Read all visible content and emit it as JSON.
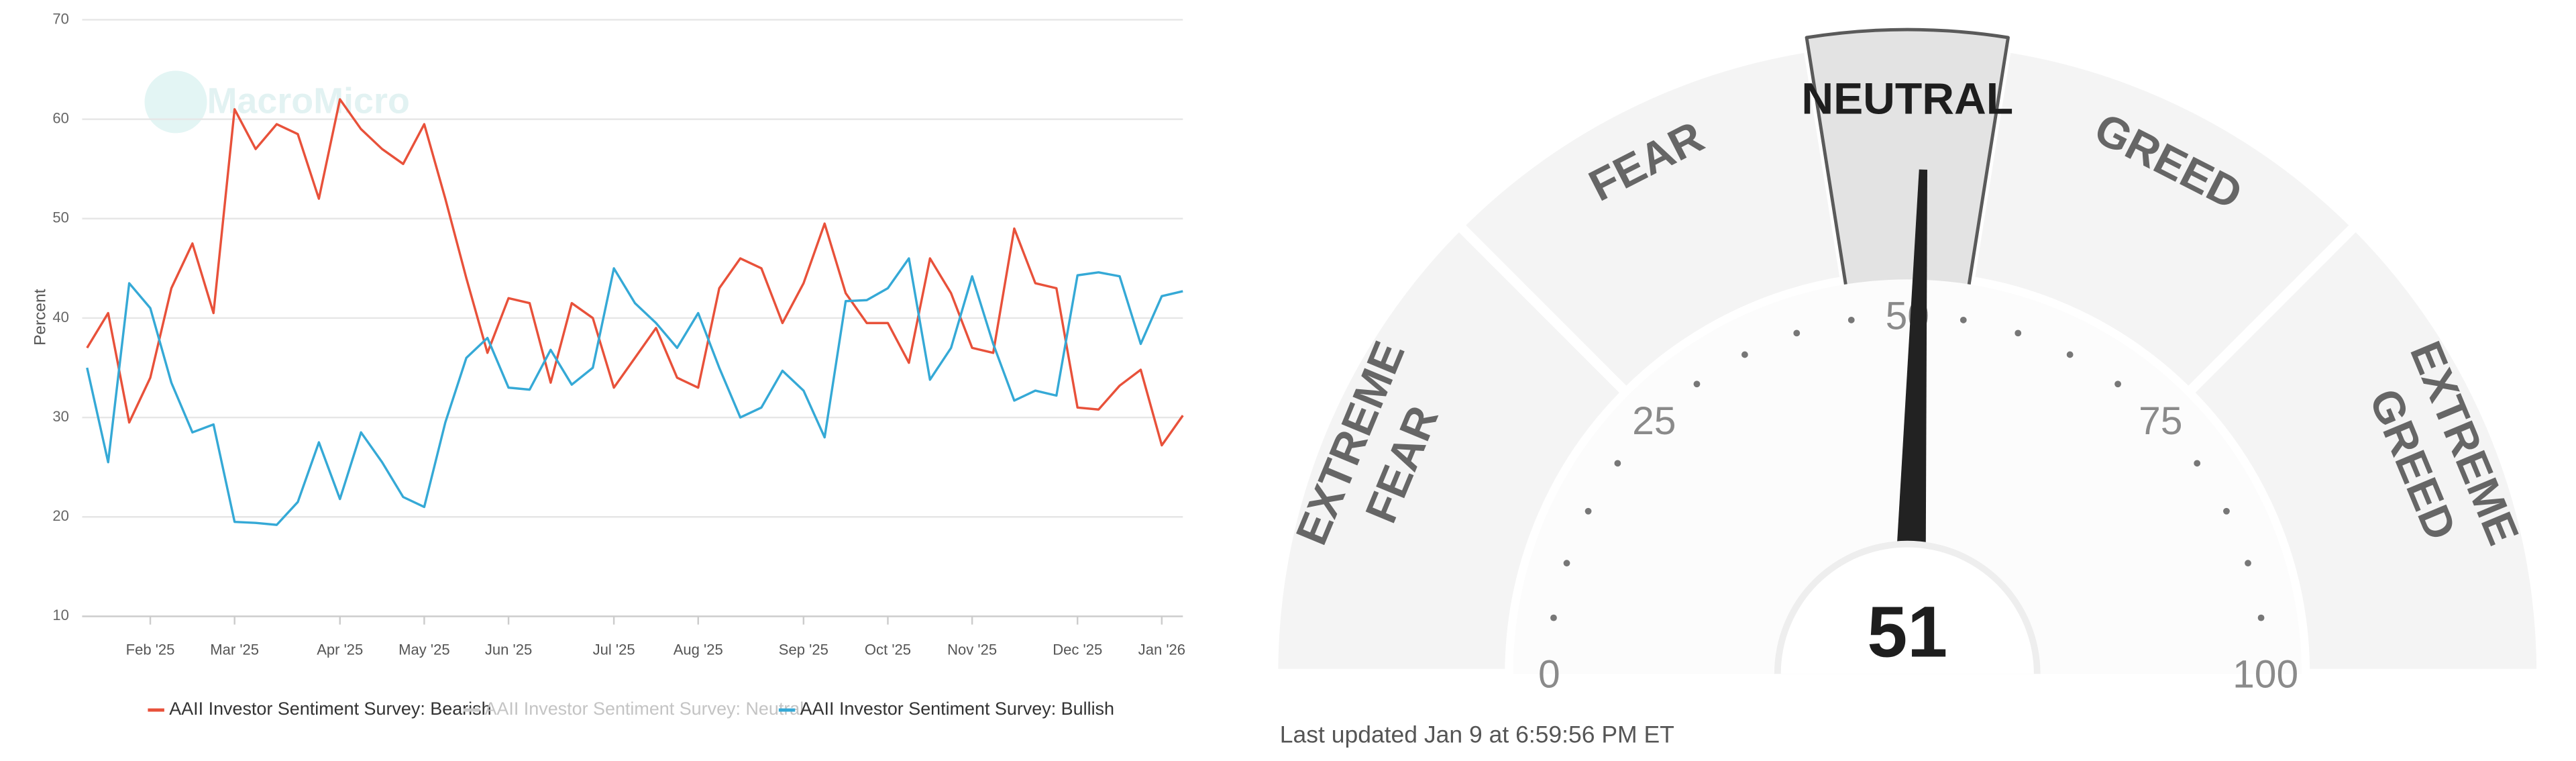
{
  "chart_data": [
    {
      "type": "line",
      "watermark": "MacroMicro",
      "ylabel": "Percent",
      "categories": [
        null,
        null,
        null,
        "Feb '25",
        null,
        null,
        null,
        "Mar '25",
        null,
        null,
        null,
        null,
        "Apr '25",
        null,
        null,
        null,
        "May '25",
        null,
        null,
        null,
        "Jun '25",
        null,
        null,
        null,
        null,
        "Jul '25",
        null,
        null,
        null,
        "Aug '25",
        null,
        null,
        null,
        null,
        "Sep '25",
        null,
        null,
        null,
        "Oct '25",
        null,
        null,
        null,
        "Nov '25",
        null,
        null,
        null,
        null,
        "Dec '25",
        null,
        null,
        null,
        "Jan '26",
        null
      ],
      "series": [
        {
          "name": "AAII Investor Sentiment Survey: Bearish",
          "color": "#e8513a",
          "values": [
            37,
            40.5,
            29.5,
            34,
            43,
            47.5,
            40.5,
            61,
            57,
            59.5,
            58.5,
            52,
            62,
            59,
            57,
            55.5,
            59.5,
            52,
            44,
            36.5,
            42,
            41.5,
            33.5,
            41.5,
            40,
            33,
            36,
            39,
            34,
            33,
            43,
            46,
            45,
            39.5,
            43.5,
            49.5,
            42.5,
            39.5,
            39.5,
            35.5,
            46,
            42.5,
            37,
            36.5,
            49,
            43.5,
            43,
            31,
            30.8,
            33.2,
            34.8,
            27.2,
            30.2
          ]
        },
        {
          "name": "AAII Investor Sentiment Survey: Neutral",
          "color": "#cccccc",
          "visible": false
        },
        {
          "name": "AAII Investor Sentiment Survey: Bullish",
          "color": "#35a9d6",
          "values": [
            35,
            25.5,
            43.5,
            41,
            33.5,
            28.5,
            29.3,
            19.5,
            19.4,
            19.2,
            21.5,
            27.5,
            21.8,
            28.5,
            25.5,
            22,
            21,
            29.5,
            36,
            38,
            33,
            32.8,
            36.8,
            33.3,
            35,
            45,
            41.5,
            39.5,
            37,
            40.5,
            35,
            30,
            31,
            34.7,
            32.7,
            28,
            41.7,
            41.8,
            43,
            46,
            33.8,
            37,
            44.2,
            37.4,
            31.7,
            32.7,
            32.2,
            44.3,
            44.6,
            44.2,
            37.4,
            42.2,
            42.7
          ]
        }
      ],
      "ylim": [
        10,
        70
      ],
      "yticks": [
        10,
        20,
        30,
        40,
        50,
        60,
        70
      ],
      "grid": true
    },
    {
      "type": "gauge",
      "value": 51,
      "range": [
        0,
        100
      ],
      "ticks": [
        0,
        25,
        50,
        75,
        100
      ],
      "segments": [
        {
          "label": [
            "EXTREME",
            "FEAR"
          ],
          "from": 0,
          "to": 25
        },
        {
          "label": [
            "FEAR"
          ],
          "from": 25,
          "to": 45
        },
        {
          "label": [
            "NEUTRAL"
          ],
          "from": 45,
          "to": 55
        },
        {
          "label": [
            "GREED"
          ],
          "from": 55,
          "to": 75
        },
        {
          "label": [
            "EXTREME",
            "GREED"
          ],
          "from": 75,
          "to": 100
        }
      ],
      "note": "Last updated Jan 9 at 6:59:56 PM ET"
    }
  ]
}
